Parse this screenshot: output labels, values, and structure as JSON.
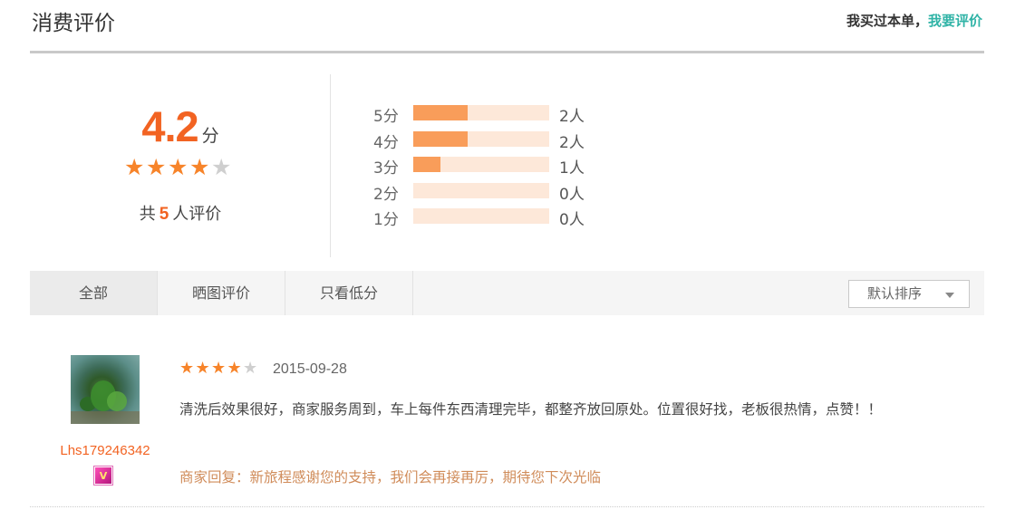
{
  "header": {
    "title": "消费评价",
    "right_text": "我买过本单，",
    "right_link": "我要评价"
  },
  "summary": {
    "score": "4.2",
    "unit": "分",
    "rating_stars": 4,
    "max_stars": 5,
    "count_prefix": "共",
    "count": "5",
    "count_suffix": "人评价"
  },
  "distribution": [
    {
      "label": "5分",
      "count": 2,
      "value_text": "2人",
      "fraction": 0.4
    },
    {
      "label": "4分",
      "count": 2,
      "value_text": "2人",
      "fraction": 0.4
    },
    {
      "label": "3分",
      "count": 1,
      "value_text": "1人",
      "fraction": 0.2
    },
    {
      "label": "2分",
      "count": 0,
      "value_text": "0人",
      "fraction": 0
    },
    {
      "label": "1分",
      "count": 0,
      "value_text": "0人",
      "fraction": 0
    }
  ],
  "tabs": [
    {
      "label": "全部",
      "active": true
    },
    {
      "label": "晒图评价",
      "active": false
    },
    {
      "label": "只看低分",
      "active": false
    }
  ],
  "sort": {
    "label": "默认排序"
  },
  "reviews": [
    {
      "username": "Lhs179246342",
      "vip_badge": "V",
      "stars": 4,
      "date": "2015-09-28",
      "text": "清洗后效果很好，商家服务周到，车上每件东西清理完毕，都整齐放回原处。位置很好找，老板很热情，点赞！！",
      "reply": "商家回复：新旅程感谢您的支持，我们会再接再厉，期待您下次光临"
    }
  ],
  "colors": {
    "accent_orange": "#f26322",
    "star_on": "#f7842a",
    "bar_fill": "#f99d5a",
    "bar_track": "#fde8d9",
    "link_teal": "#2fb3a6",
    "reply_color": "#d08c5a"
  },
  "icons": {
    "star": "star-icon",
    "caret": "chevron-down-icon",
    "vip": "vip-badge-icon"
  }
}
